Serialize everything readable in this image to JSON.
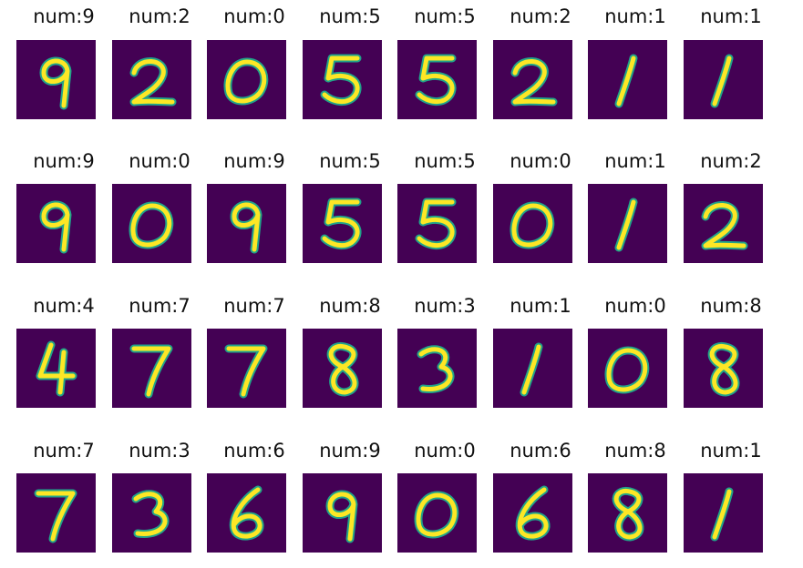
{
  "figure": {
    "background_color": "#440154",
    "stroke_color": "#fde725",
    "edge_color": "#21a38a",
    "digits": [
      {
        "label": "num:9",
        "digit": "9"
      },
      {
        "label": "num:2",
        "digit": "2"
      },
      {
        "label": "num:0",
        "digit": "0"
      },
      {
        "label": "num:5",
        "digit": "5"
      },
      {
        "label": "num:5",
        "digit": "5"
      },
      {
        "label": "num:2",
        "digit": "2"
      },
      {
        "label": "num:1",
        "digit": "1"
      },
      {
        "label": "num:1",
        "digit": "1"
      },
      {
        "label": "num:9",
        "digit": "9"
      },
      {
        "label": "num:0",
        "digit": "0"
      },
      {
        "label": "num:9",
        "digit": "9"
      },
      {
        "label": "num:5",
        "digit": "5"
      },
      {
        "label": "num:5",
        "digit": "5"
      },
      {
        "label": "num:0",
        "digit": "0"
      },
      {
        "label": "num:1",
        "digit": "1"
      },
      {
        "label": "num:2",
        "digit": "2"
      },
      {
        "label": "num:4",
        "digit": "4"
      },
      {
        "label": "num:7",
        "digit": "7"
      },
      {
        "label": "num:7",
        "digit": "7"
      },
      {
        "label": "num:8",
        "digit": "8"
      },
      {
        "label": "num:3",
        "digit": "3"
      },
      {
        "label": "num:1",
        "digit": "1"
      },
      {
        "label": "num:0",
        "digit": "0"
      },
      {
        "label": "num:8",
        "digit": "8"
      },
      {
        "label": "num:7",
        "digit": "7"
      },
      {
        "label": "num:3",
        "digit": "3"
      },
      {
        "label": "num:6",
        "digit": "6"
      },
      {
        "label": "num:9",
        "digit": "9"
      },
      {
        "label": "num:0",
        "digit": "0"
      },
      {
        "label": "num:6",
        "digit": "6"
      },
      {
        "label": "num:8",
        "digit": "8"
      },
      {
        "label": "num:1",
        "digit": "1"
      }
    ]
  }
}
